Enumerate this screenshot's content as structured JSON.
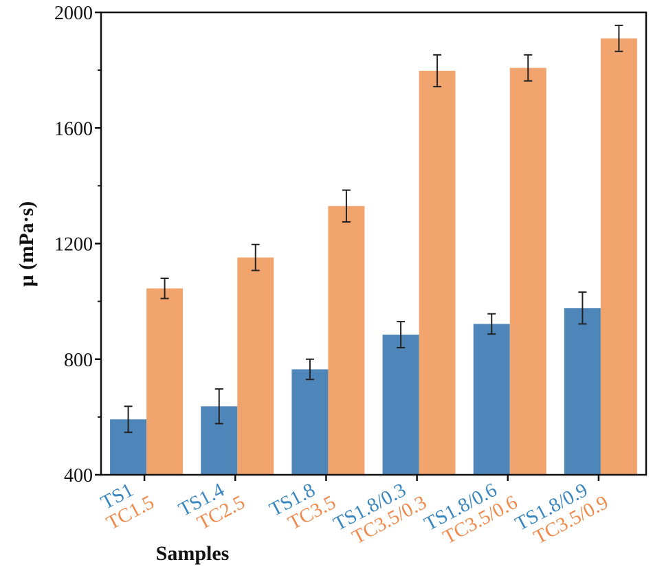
{
  "chart_data": {
    "type": "bar",
    "xlabel": "Samples",
    "ylabel": "μ (mPa·s)",
    "ylim": [
      400,
      2000
    ],
    "yticks": [
      400,
      800,
      1200,
      1600,
      2000
    ],
    "grid": false,
    "categories": [
      [
        "TS1",
        "TC1.5"
      ],
      [
        "TS1.4",
        "TC2.5"
      ],
      [
        "TS1.8",
        "TC3.5"
      ],
      [
        "TS1.8/0.3",
        "TC3.5/0.3"
      ],
      [
        "TS1.8/0.6",
        "TC3.5/0.6"
      ],
      [
        "TS1.8/0.9",
        "TC3.5/0.9"
      ]
    ],
    "series": [
      {
        "color": "#4e86ba",
        "label_color": "#3a86bf",
        "values": [
          592,
          637,
          765,
          885,
          922,
          977
        ],
        "errors": [
          45,
          60,
          35,
          45,
          35,
          55
        ]
      },
      {
        "color": "#f2a46e",
        "label_color": "#ee8a4c",
        "values": [
          1045,
          1152,
          1330,
          1798,
          1808,
          1910
        ],
        "errors": [
          35,
          45,
          55,
          55,
          45,
          45
        ]
      }
    ]
  }
}
